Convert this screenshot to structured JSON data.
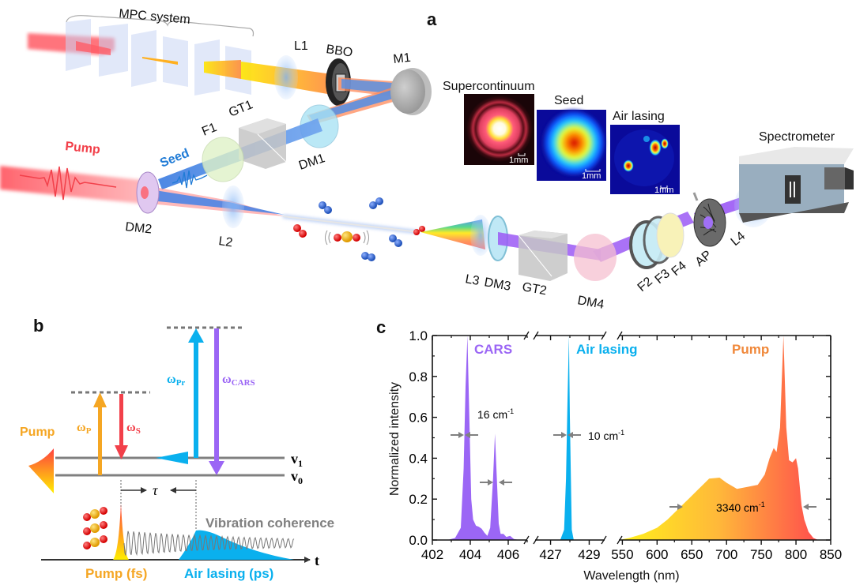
{
  "panels": {
    "a": "a",
    "b": "b",
    "c": "c"
  },
  "panel_a": {
    "mpc_label": "MPC system",
    "components": {
      "L1": "L1",
      "BBO": "BBO",
      "M1": "M1",
      "F1": "F1",
      "GT1": "GT1",
      "DM1": "DM1",
      "DM2": "DM2",
      "L2": "L2",
      "L3": "L3",
      "DM3": "DM3",
      "GT2": "GT2",
      "DM4": "DM4",
      "F2": "F2",
      "F3": "F3",
      "F4": "F4",
      "AP": "AP",
      "L4": "L4",
      "spectrometer": "Spectrometer"
    },
    "beam_labels": {
      "pump": "Pump",
      "seed": "Seed"
    },
    "insets": [
      {
        "title": "Supercontinuum",
        "scale": "1mm"
      },
      {
        "title": "Seed",
        "scale": "1mm"
      },
      {
        "title": "Air lasing",
        "scale": "1mm"
      }
    ],
    "colors": {
      "pump": "#f2404a",
      "seed": "#1f7bd6",
      "cars": "#9b59f5"
    }
  },
  "panel_b": {
    "pump_label": "Pump",
    "omega_p": "ω",
    "omega_p_sub": "P",
    "omega_s": "ω",
    "omega_s_sub": "S",
    "omega_pr": "ω",
    "omega_pr_sub": "Pr",
    "omega_cars": "ω",
    "omega_cars_sub": "CARS",
    "v1": "v",
    "v1_sub": "1",
    "v0": "v",
    "v0_sub": "0",
    "tau": "τ",
    "vibration": "Vibration coherence",
    "t_axis": "t",
    "pump_fs": "Pump (fs)",
    "air_lasing_ps": "Air lasing (ps)",
    "colors": {
      "pump": "#f5a623",
      "stokes": "#f2404a",
      "probe": "#0ab0ee",
      "cars": "#9b66f5",
      "grey": "#808080"
    }
  },
  "chart_data": {
    "type": "area",
    "title": "",
    "xlabel": "Wavelength (nm)",
    "ylabel": "Normalized intensity",
    "ylim": [
      0,
      1.0
    ],
    "yticks": [
      "0.0",
      "0.2",
      "0.4",
      "0.6",
      "0.8",
      "1.0"
    ],
    "broken_x_axis": true,
    "x_segments": [
      {
        "range": [
          402,
          407
        ],
        "ticks": [
          "402",
          "404",
          "406"
        ]
      },
      {
        "range": [
          426.2,
          429.8
        ],
        "ticks": [
          "427",
          "429"
        ]
      },
      {
        "range": [
          545,
          850
        ],
        "ticks": [
          "550",
          "600",
          "650",
          "700",
          "750",
          "800",
          "850"
        ]
      }
    ],
    "series": [
      {
        "name": "CARS",
        "color": "#9b66f5",
        "x": [
          402.8,
          403.2,
          403.5,
          403.65,
          403.75,
          403.85,
          403.95,
          404.05,
          404.15,
          404.3,
          404.45,
          404.6,
          404.75,
          404.9,
          405.05,
          405.2,
          405.3,
          405.4,
          405.5,
          405.6,
          405.75,
          405.9,
          406.1,
          406.3,
          406.6
        ],
        "y": [
          0.0,
          0.01,
          0.06,
          0.35,
          0.75,
          1.0,
          0.6,
          0.2,
          0.1,
          0.07,
          0.065,
          0.055,
          0.035,
          0.02,
          0.06,
          0.3,
          0.52,
          0.3,
          0.08,
          0.03,
          0.03,
          0.015,
          0.02,
          0.005,
          0.0
        ]
      },
      {
        "name": "Air lasing",
        "color": "#0ab0ee",
        "x": [
          427.5,
          427.7,
          427.8,
          427.88,
          427.95,
          428.0,
          428.1,
          428.2
        ],
        "y": [
          0.0,
          0.05,
          0.3,
          0.7,
          1.0,
          0.6,
          0.05,
          0.0
        ]
      },
      {
        "name": "Pump",
        "color_start": "#fff21a",
        "color_end": "#ff4d4d",
        "x": [
          545,
          560,
          580,
          600,
          615,
          630,
          645,
          660,
          675,
          690,
          700,
          715,
          730,
          745,
          755,
          762,
          768,
          772,
          777,
          782,
          786,
          790,
          795,
          800,
          803,
          808,
          812,
          818,
          825,
          832
        ],
        "y": [
          0.0,
          0.01,
          0.03,
          0.06,
          0.1,
          0.15,
          0.2,
          0.25,
          0.3,
          0.305,
          0.28,
          0.25,
          0.26,
          0.27,
          0.32,
          0.4,
          0.45,
          0.43,
          0.55,
          1.0,
          0.55,
          0.39,
          0.38,
          0.4,
          0.35,
          0.17,
          0.1,
          0.04,
          0.01,
          0.0
        ]
      }
    ],
    "annotations": [
      {
        "text": "CARS",
        "series": "CARS"
      },
      {
        "text": "Air lasing",
        "series": "Air lasing"
      },
      {
        "text": "Pump",
        "series": "Pump"
      },
      {
        "text": "16 cm",
        "sup": "-1",
        "target": "CARS FWHM"
      },
      {
        "text": "10 cm",
        "sup": "-1",
        "target": "Air lasing FWHM"
      },
      {
        "text": "3340 cm",
        "sup": "-1",
        "target": "Pump FWHM"
      }
    ]
  }
}
